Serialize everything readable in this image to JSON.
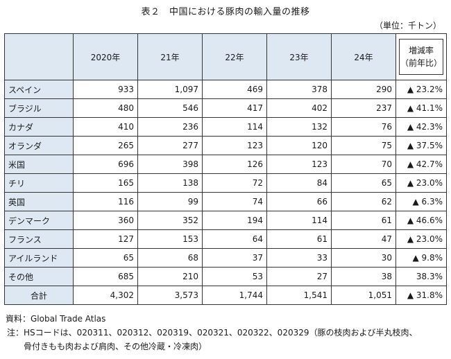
{
  "title": "表２　中国における豚肉の輸入量の推移",
  "unit": "（単位：千トン）",
  "table": {
    "columns": [
      "2020年",
      "21年",
      "22年",
      "23年",
      "24年"
    ],
    "rate_header": [
      "増減率",
      "（前年比）"
    ],
    "rows": [
      {
        "country": "スペイン",
        "values": [
          "933",
          "1,097",
          "469",
          "378",
          "290"
        ],
        "rate": "▲ 23.2%"
      },
      {
        "country": "ブラジル",
        "values": [
          "480",
          "546",
          "417",
          "402",
          "237"
        ],
        "rate": "▲ 41.1%"
      },
      {
        "country": "カナダ",
        "values": [
          "410",
          "236",
          "114",
          "132",
          "76"
        ],
        "rate": "▲ 42.3%"
      },
      {
        "country": "オランダ",
        "values": [
          "265",
          "277",
          "123",
          "120",
          "75"
        ],
        "rate": "▲ 37.5%"
      },
      {
        "country": "米国",
        "values": [
          "696",
          "398",
          "126",
          "123",
          "70"
        ],
        "rate": "▲ 42.7%"
      },
      {
        "country": "チリ",
        "values": [
          "165",
          "138",
          "72",
          "84",
          "65"
        ],
        "rate": "▲ 23.0%"
      },
      {
        "country": "英国",
        "values": [
          "116",
          "99",
          "74",
          "66",
          "62"
        ],
        "rate": "▲ 6.3%"
      },
      {
        "country": "デンマーク",
        "values": [
          "360",
          "352",
          "194",
          "114",
          "61"
        ],
        "rate": "▲ 46.6%"
      },
      {
        "country": "フランス",
        "values": [
          "127",
          "153",
          "64",
          "61",
          "47"
        ],
        "rate": "▲ 23.0%"
      },
      {
        "country": "アイルランド",
        "values": [
          "65",
          "68",
          "37",
          "33",
          "30"
        ],
        "rate": "▲ 9.8%"
      },
      {
        "country": "その他",
        "values": [
          "685",
          "210",
          "53",
          "27",
          "38"
        ],
        "rate": "38.3%"
      }
    ],
    "total": {
      "country": "合計",
      "values": [
        "4,302",
        "3,573",
        "1,744",
        "1,541",
        "1,051"
      ],
      "rate": "▲ 31.8%"
    }
  },
  "notes": {
    "source": "資料：Global Trade Atlas",
    "note_label": "注：",
    "note_line1": "HSコードは、020311、020312、020319、020321、020322、020329（豚の枝肉および半丸枝肉、",
    "note_line2": "骨付きもも肉および肩肉、その他冷蔵・冷凍肉）"
  }
}
